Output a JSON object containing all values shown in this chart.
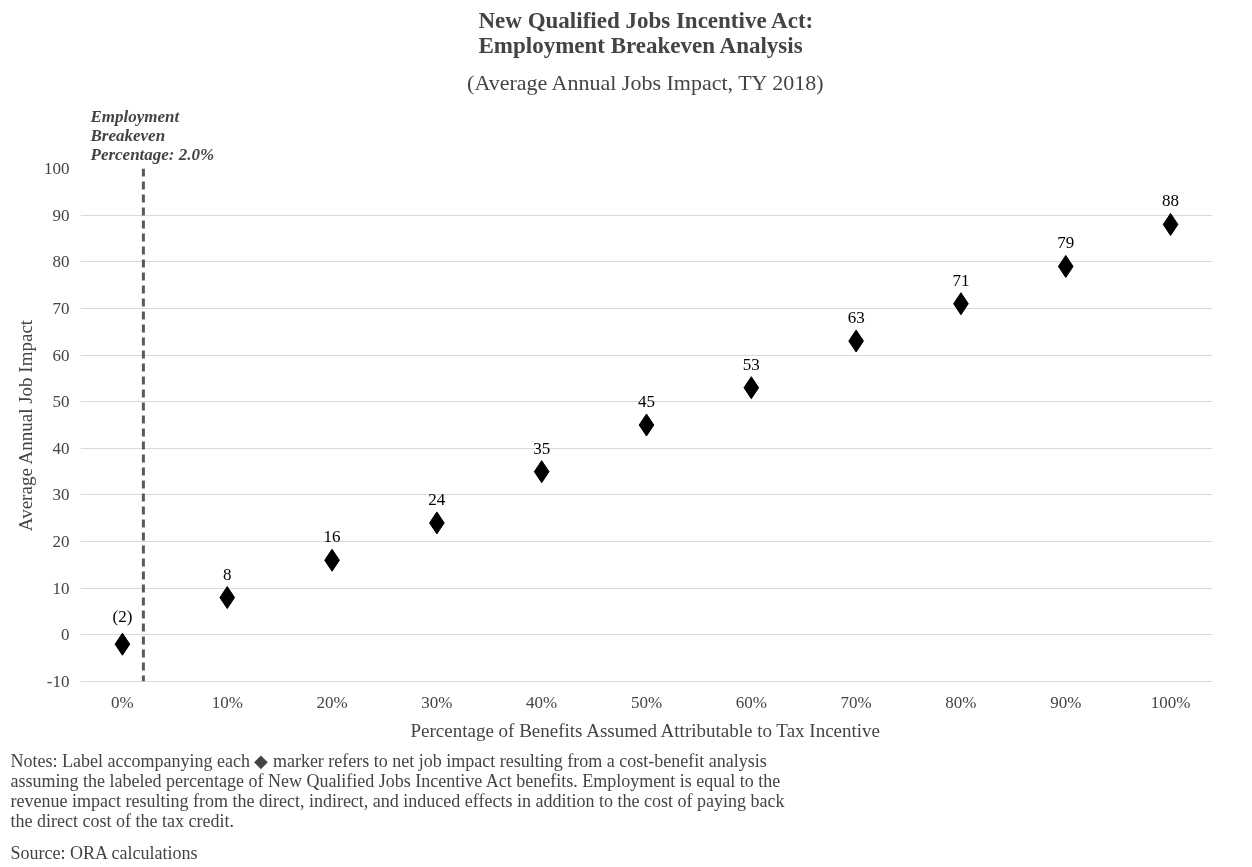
{
  "chart_data": {
    "type": "scatter",
    "title": "New Qualified Jobs Incentive Act:\nEmployment Breakeven Analysis",
    "subtitle": "(Average Annual Jobs Impact, TY 2018)",
    "xlabel": "Percentage of Benefits Assumed Attributable to Tax Incentive",
    "ylabel": "Average Annual Job Impact",
    "x": [
      0,
      10,
      20,
      30,
      40,
      50,
      60,
      70,
      80,
      90,
      100
    ],
    "values": [
      -2,
      8,
      16,
      24,
      35,
      45,
      53,
      63,
      71,
      79,
      88
    ],
    "value_labels": [
      "(2)",
      "8",
      "16",
      "24",
      "35",
      "45",
      "53",
      "63",
      "71",
      "79",
      "88"
    ],
    "color": "#000000",
    "marker": "diamond",
    "xlim": [
      -4,
      104
    ],
    "xticks": [
      {
        "value": 0,
        "label": "0%"
      },
      {
        "value": 10,
        "label": "10%"
      },
      {
        "value": 20,
        "label": "20%"
      },
      {
        "value": 30,
        "label": "30%"
      },
      {
        "value": 40,
        "label": "40%"
      },
      {
        "value": 50,
        "label": "50%"
      },
      {
        "value": 60,
        "label": "60%"
      },
      {
        "value": 70,
        "label": "70%"
      },
      {
        "value": 80,
        "label": "80%"
      },
      {
        "value": 90,
        "label": "90%"
      },
      {
        "value": 100,
        "label": "100%"
      }
    ],
    "ylim": [
      -10,
      100
    ],
    "yticks": [
      -10,
      0,
      10,
      20,
      30,
      40,
      50,
      60,
      70,
      80,
      90,
      100
    ],
    "grid": "y",
    "ref_lines": [
      {
        "axis": "x",
        "value": 2,
        "label": "Employment\nBreakeven\nPercentage: 2.0%",
        "color": "#595959",
        "line_style": "dashed"
      }
    ],
    "annotations": [
      "Notes: Label accompanying each ◆ marker refers to net job impact resulting from a cost-benefit analysis\nassuming the labeled percentage of New Qualified Jobs Incentive Act benefits. Employment is equal to the\nrevenue impact resulting from the direct, indirect, and induced effects in addition to the cost of paying back\nthe direct cost of the tax credit.",
      "Source: ORA calculations"
    ]
  }
}
